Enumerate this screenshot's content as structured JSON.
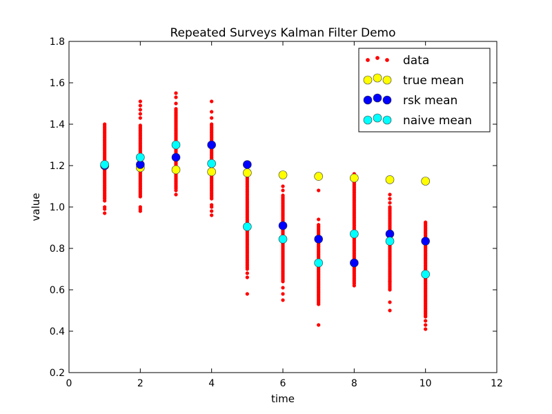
{
  "chart_data": {
    "type": "scatter",
    "title": "Repeated Surveys Kalman Filter Demo",
    "xlabel": "time",
    "ylabel": "value",
    "xlim": [
      0,
      12
    ],
    "ylim": [
      0.2,
      1.8
    ],
    "xticks": [
      "0",
      "2",
      "4",
      "6",
      "8",
      "10",
      "12"
    ],
    "yticks": [
      "0.2",
      "0.4",
      "0.6",
      "0.8",
      "1.0",
      "1.2",
      "1.4",
      "1.6",
      "1.8"
    ],
    "grid": false,
    "legend_position": "top-right",
    "data_column": {
      "name": "data",
      "color": "#ff0000",
      "ranges": [
        {
          "x": 1,
          "low": 1.04,
          "high": 1.4,
          "outliers": [
            0.97,
            0.99,
            1.0,
            1.03
          ]
        },
        {
          "x": 2,
          "low": 1.05,
          "high": 1.4,
          "outliers": [
            0.98,
            0.99,
            1.0,
            1.43,
            1.45,
            1.47,
            1.49,
            1.51
          ]
        },
        {
          "x": 3,
          "low": 1.09,
          "high": 1.48,
          "outliers": [
            1.06,
            1.08,
            1.5,
            1.53,
            1.55
          ]
        },
        {
          "x": 4,
          "low": 1.04,
          "high": 1.4,
          "outliers": [
            0.96,
            0.98,
            1.0,
            1.01,
            1.43,
            1.46,
            1.51
          ]
        },
        {
          "x": 5,
          "low": 0.7,
          "high": 1.14,
          "outliers": [
            0.58,
            0.66,
            0.68
          ]
        },
        {
          "x": 6,
          "low": 0.64,
          "high": 1.06,
          "outliers": [
            0.55,
            0.58,
            0.61,
            1.08,
            1.1
          ]
        },
        {
          "x": 7,
          "low": 0.53,
          "high": 0.92,
          "outliers": [
            0.43,
            0.94,
            1.08
          ]
        },
        {
          "x": 8,
          "low": 0.63,
          "high": 1.12,
          "outliers": [
            0.62,
            1.14,
            1.16
          ]
        },
        {
          "x": 9,
          "low": 0.6,
          "high": 1.0,
          "outliers": [
            0.5,
            0.54,
            0.64,
            1.02,
            1.04,
            1.06
          ]
        },
        {
          "x": 10,
          "low": 0.47,
          "high": 0.93,
          "outliers": [
            0.41,
            0.43,
            0.45
          ]
        }
      ]
    },
    "series": [
      {
        "name": "true mean",
        "color": "#ffff00",
        "x": [
          1,
          2,
          3,
          4,
          5,
          6,
          7,
          8,
          9,
          10
        ],
        "y": [
          1.2,
          1.19,
          1.18,
          1.17,
          1.165,
          1.155,
          1.148,
          1.14,
          1.132,
          1.125
        ]
      },
      {
        "name": "rsk mean",
        "color": "#0000ff",
        "x": [
          1,
          2,
          3,
          4,
          5,
          6,
          7,
          8,
          9,
          10
        ],
        "y": [
          1.2,
          1.205,
          1.24,
          1.3,
          1.205,
          0.91,
          0.845,
          0.73,
          0.87,
          0.835
        ]
      },
      {
        "name": "naive mean",
        "color": "#00ffff",
        "x": [
          1,
          2,
          3,
          4,
          5,
          6,
          7,
          8,
          9,
          10
        ],
        "y": [
          1.205,
          1.24,
          1.3,
          1.21,
          0.905,
          0.845,
          0.73,
          0.87,
          0.835,
          0.675
        ]
      }
    ]
  }
}
